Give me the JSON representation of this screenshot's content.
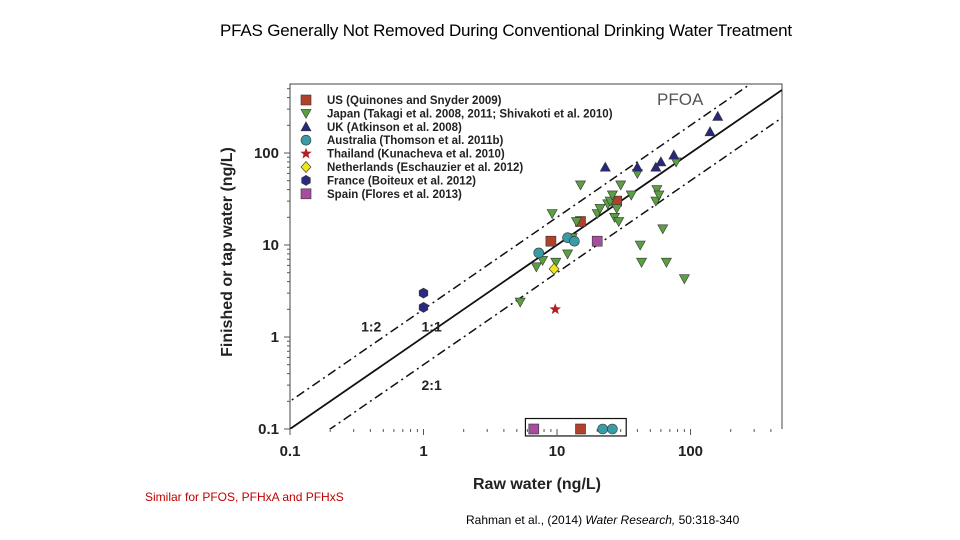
{
  "slide": {
    "title": "PFAS Generally Not Removed During Conventional Drinking Water Treatment",
    "footnote": "Similar for PFOS, PFHxA and PFHxS",
    "citation": {
      "authors": "Rahman et al., (2014)",
      "journal": "Water Research,",
      "volume": "50:318-340"
    }
  },
  "colors": {
    "us": "#b0412b",
    "japan": "#5aa042",
    "uk": "#27287c",
    "australia": "#3a9aa5",
    "thailand": "#b21e23",
    "netherlands": "#f0e51c",
    "france": "#2a2a80",
    "spain": "#a84ca0"
  },
  "chart_data": {
    "type": "scatter",
    "title": "PFOA",
    "xlabel": "Raw water (ng/L)",
    "ylabel": "Finished or tap water (ng/L)",
    "xscale": "log",
    "yscale": "log",
    "xlim": [
      0.1,
      500
    ],
    "ylim": [
      0.1,
      500
    ],
    "xticks": [
      {
        "v": 0.1,
        "label": "0.1"
      },
      {
        "v": 1,
        "label": "1"
      },
      {
        "v": 10,
        "label": "10"
      },
      {
        "v": 100,
        "label": "100"
      }
    ],
    "yticks": [
      {
        "v": 0.1,
        "label": "0.1"
      },
      {
        "v": 1,
        "label": "1"
      },
      {
        "v": 10,
        "label": "10"
      },
      {
        "v": 100,
        "label": "100"
      }
    ],
    "reference_lines": [
      {
        "name": "1:2",
        "factor": 2,
        "style": "dashdot"
      },
      {
        "name": "1:1",
        "factor": 1,
        "style": "solid"
      },
      {
        "name": "2:1",
        "factor": 0.5,
        "style": "dashdot"
      }
    ],
    "ratio_labels": [
      {
        "text": "1:2",
        "x": 0.5,
        "y": 1.3
      },
      {
        "text": "1:1",
        "x": 1.0,
        "y": 1.3
      },
      {
        "text": "2:1",
        "x": 1.0,
        "y": 0.3
      }
    ],
    "below_detection_box": {
      "x_min": 5.8,
      "x_max": 33,
      "y_min": 0.084,
      "y_max": 0.13
    },
    "legend_position": "top-left",
    "series": [
      {
        "name": "US (Quinones and Snyder 2009)",
        "key": "us",
        "marker": "square",
        "points": [
          [
            9,
            11
          ],
          [
            15,
            18
          ],
          [
            28,
            30
          ],
          [
            15,
            0.1
          ]
        ]
      },
      {
        "name": "Japan (Takagi et al. 2008, 2011; Shivakoti et al. 2010)",
        "key": "japan",
        "marker": "triangle-down",
        "points": [
          [
            5.3,
            2.4
          ],
          [
            7.0,
            5.8
          ],
          [
            7.8,
            6.8
          ],
          [
            9.8,
            6.5
          ],
          [
            9.2,
            22
          ],
          [
            12,
            8
          ],
          [
            13,
            12
          ],
          [
            14,
            18
          ],
          [
            15,
            45
          ],
          [
            20,
            22
          ],
          [
            21,
            25
          ],
          [
            24,
            28
          ],
          [
            25,
            30
          ],
          [
            26,
            35
          ],
          [
            27,
            20
          ],
          [
            28,
            25
          ],
          [
            29,
            18
          ],
          [
            30,
            45
          ],
          [
            36,
            35
          ],
          [
            40,
            60
          ],
          [
            42,
            10
          ],
          [
            43,
            6.5
          ],
          [
            55,
            30
          ],
          [
            56,
            40
          ],
          [
            58,
            35
          ],
          [
            62,
            15
          ],
          [
            66,
            6.5
          ],
          [
            78,
            80
          ],
          [
            90,
            4.3
          ]
        ]
      },
      {
        "name": "UK (Atkinson et al. 2008)",
        "key": "uk",
        "marker": "triangle-up",
        "points": [
          [
            23,
            70
          ],
          [
            40,
            70
          ],
          [
            55,
            70
          ],
          [
            60,
            80
          ],
          [
            75,
            95
          ],
          [
            140,
            170
          ],
          [
            160,
            250
          ]
        ]
      },
      {
        "name": "Australia (Thomson et al. 2011b)",
        "key": "australia",
        "marker": "circle",
        "points": [
          [
            7.3,
            8.2
          ],
          [
            12,
            12
          ],
          [
            13.5,
            11
          ],
          [
            22,
            0.1
          ],
          [
            26,
            0.1
          ]
        ]
      },
      {
        "name": "Thailand (Kunacheva et al. 2010)",
        "key": "thailand",
        "marker": "star",
        "points": [
          [
            9.7,
            2.0
          ]
        ]
      },
      {
        "name": "Netherlands (Eschauzier et al. 2012)",
        "key": "netherlands",
        "marker": "diamond",
        "points": [
          [
            9.5,
            5.5
          ]
        ]
      },
      {
        "name": "France (Boiteux et al. 2012)",
        "key": "france",
        "marker": "hexagon",
        "points": [
          [
            1,
            3
          ],
          [
            1,
            2.1
          ]
        ]
      },
      {
        "name": "Spain (Flores et al. 2013)",
        "key": "spain",
        "marker": "square",
        "points": [
          [
            20,
            11
          ],
          [
            6.7,
            0.1
          ]
        ]
      }
    ]
  }
}
